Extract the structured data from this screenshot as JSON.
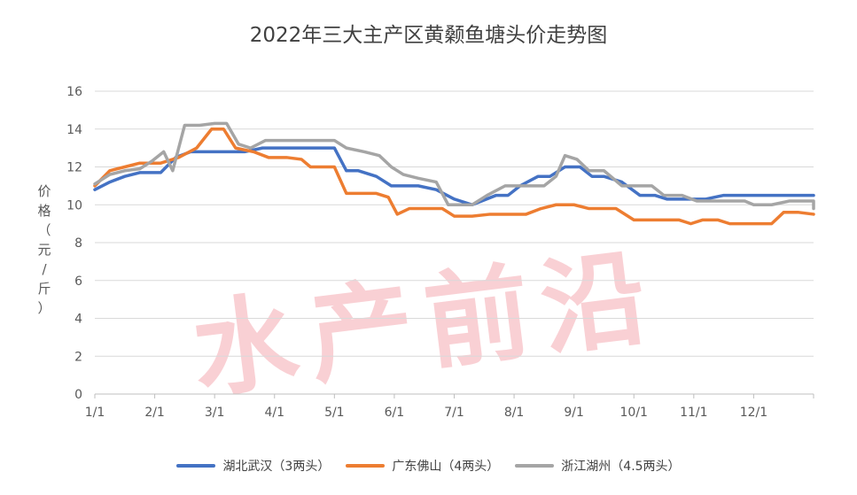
{
  "chart_data": {
    "type": "line",
    "title": "2022年三大主产区黄颡鱼塘头价走势图",
    "ylabel_chars": [
      "价",
      "格",
      "（",
      "元",
      "/",
      "斤",
      "）"
    ],
    "ylim": [
      0,
      16
    ],
    "yticks": [
      0,
      2,
      4,
      6,
      8,
      10,
      12,
      14,
      16
    ],
    "xlim": [
      0,
      12
    ],
    "xticks": [
      {
        "x": 0,
        "label": "1/1"
      },
      {
        "x": 1,
        "label": "2/1"
      },
      {
        "x": 2,
        "label": "3/1"
      },
      {
        "x": 3,
        "label": "4/1"
      },
      {
        "x": 4,
        "label": "5/1"
      },
      {
        "x": 5,
        "label": "6/1"
      },
      {
        "x": 6,
        "label": "7/1"
      },
      {
        "x": 7,
        "label": "8/1"
      },
      {
        "x": 8,
        "label": "9/1"
      },
      {
        "x": 9,
        "label": "10/1"
      },
      {
        "x": 10,
        "label": "11/1"
      },
      {
        "x": 11,
        "label": "12/1"
      }
    ],
    "grid": true,
    "legend_position": "bottom",
    "watermark": "水产前沿",
    "series": [
      {
        "name": "湖北武汉（3两头）",
        "color": "#4472C4",
        "points": [
          [
            0,
            10.8
          ],
          [
            0.25,
            11.2
          ],
          [
            0.5,
            11.5
          ],
          [
            0.75,
            11.7
          ],
          [
            1.1,
            11.7
          ],
          [
            1.35,
            12.5
          ],
          [
            1.6,
            12.8
          ],
          [
            2,
            12.8
          ],
          [
            2.5,
            12.8
          ],
          [
            2.8,
            13
          ],
          [
            3.2,
            13
          ],
          [
            3.6,
            13
          ],
          [
            4,
            13
          ],
          [
            4.2,
            11.8
          ],
          [
            4.4,
            11.8
          ],
          [
            4.7,
            11.5
          ],
          [
            4.95,
            11
          ],
          [
            5.4,
            11
          ],
          [
            5.7,
            10.8
          ],
          [
            6,
            10.3
          ],
          [
            6.3,
            10
          ],
          [
            6.7,
            10.5
          ],
          [
            6.9,
            10.5
          ],
          [
            7.1,
            11
          ],
          [
            7.4,
            11.5
          ],
          [
            7.6,
            11.5
          ],
          [
            7.85,
            12
          ],
          [
            8.1,
            12
          ],
          [
            8.3,
            11.5
          ],
          [
            8.5,
            11.5
          ],
          [
            8.8,
            11.2
          ],
          [
            9.1,
            10.5
          ],
          [
            9.35,
            10.5
          ],
          [
            9.55,
            10.3
          ],
          [
            9.9,
            10.3
          ],
          [
            10.2,
            10.3
          ],
          [
            10.5,
            10.5
          ],
          [
            11,
            10.5
          ],
          [
            11.5,
            10.5
          ],
          [
            12,
            10.5
          ]
        ]
      },
      {
        "name": "广东佛山（4两头）",
        "color": "#ED7D31",
        "points": [
          [
            0,
            11
          ],
          [
            0.25,
            11.8
          ],
          [
            0.5,
            12
          ],
          [
            0.75,
            12.2
          ],
          [
            1,
            12.2
          ],
          [
            1.1,
            12.2
          ],
          [
            1.4,
            12.5
          ],
          [
            1.7,
            13
          ],
          [
            1.95,
            14
          ],
          [
            2.15,
            14
          ],
          [
            2.35,
            13
          ],
          [
            2.65,
            12.8
          ],
          [
            2.9,
            12.5
          ],
          [
            3.2,
            12.5
          ],
          [
            3.45,
            12.4
          ],
          [
            3.6,
            12
          ],
          [
            4,
            12
          ],
          [
            4.2,
            10.6
          ],
          [
            4.5,
            10.6
          ],
          [
            4.7,
            10.6
          ],
          [
            4.9,
            10.4
          ],
          [
            5.05,
            9.5
          ],
          [
            5.25,
            9.8
          ],
          [
            5.5,
            9.8
          ],
          [
            5.8,
            9.8
          ],
          [
            6,
            9.4
          ],
          [
            6.3,
            9.4
          ],
          [
            6.6,
            9.5
          ],
          [
            7,
            9.5
          ],
          [
            7.2,
            9.5
          ],
          [
            7.45,
            9.8
          ],
          [
            7.7,
            10
          ],
          [
            8,
            10
          ],
          [
            8.25,
            9.8
          ],
          [
            8.7,
            9.8
          ],
          [
            9,
            9.2
          ],
          [
            9.5,
            9.2
          ],
          [
            9.75,
            9.2
          ],
          [
            9.95,
            9
          ],
          [
            10.15,
            9.2
          ],
          [
            10.4,
            9.2
          ],
          [
            10.6,
            9
          ],
          [
            11,
            9
          ],
          [
            11.3,
            9
          ],
          [
            11.5,
            9.6
          ],
          [
            11.75,
            9.6
          ],
          [
            12,
            9.5
          ]
        ]
      },
      {
        "name": "浙江湖州（4.5两头）",
        "color": "#A5A5A5",
        "points": [
          [
            0,
            11.1
          ],
          [
            0.25,
            11.6
          ],
          [
            0.5,
            11.8
          ],
          [
            0.75,
            11.9
          ],
          [
            0.95,
            12.3
          ],
          [
            1.15,
            12.8
          ],
          [
            1.3,
            11.8
          ],
          [
            1.5,
            14.2
          ],
          [
            1.75,
            14.2
          ],
          [
            2,
            14.3
          ],
          [
            2.2,
            14.3
          ],
          [
            2.4,
            13.2
          ],
          [
            2.6,
            13
          ],
          [
            2.85,
            13.4
          ],
          [
            3.1,
            13.4
          ],
          [
            3.5,
            13.4
          ],
          [
            3.8,
            13.4
          ],
          [
            4,
            13.4
          ],
          [
            4.2,
            13
          ],
          [
            4.5,
            12.8
          ],
          [
            4.75,
            12.6
          ],
          [
            4.95,
            12
          ],
          [
            5.15,
            11.6
          ],
          [
            5.4,
            11.4
          ],
          [
            5.7,
            11.2
          ],
          [
            5.9,
            10
          ],
          [
            6.1,
            10
          ],
          [
            6.3,
            10
          ],
          [
            6.55,
            10.5
          ],
          [
            6.85,
            11
          ],
          [
            7.2,
            11
          ],
          [
            7.5,
            11
          ],
          [
            7.7,
            11.5
          ],
          [
            7.85,
            12.6
          ],
          [
            8.05,
            12.4
          ],
          [
            8.25,
            11.8
          ],
          [
            8.5,
            11.8
          ],
          [
            8.8,
            11
          ],
          [
            9,
            11
          ],
          [
            9.3,
            11
          ],
          [
            9.5,
            10.5
          ],
          [
            9.8,
            10.5
          ],
          [
            10.05,
            10.2
          ],
          [
            10.3,
            10.2
          ],
          [
            10.6,
            10.2
          ],
          [
            10.85,
            10.2
          ],
          [
            11,
            10
          ],
          [
            11.3,
            10
          ],
          [
            11.6,
            10.2
          ],
          [
            12,
            10.2
          ],
          [
            12.2,
            9.8
          ]
        ]
      }
    ]
  }
}
